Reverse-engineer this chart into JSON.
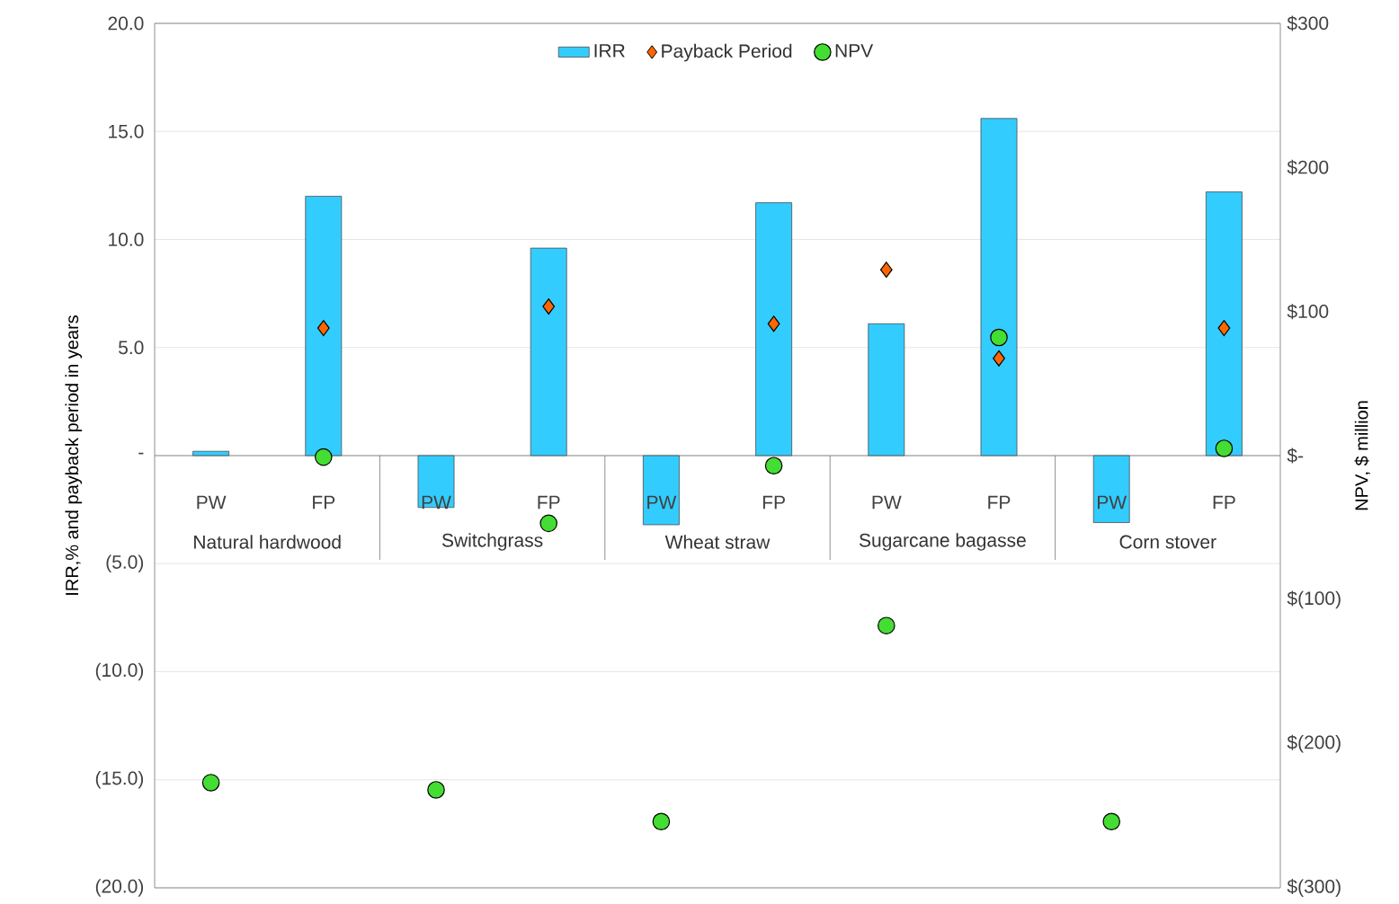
{
  "chart_data": {
    "type": "bar",
    "categories": [
      "PW",
      "FP",
      "PW",
      "FP",
      "PW",
      "FP",
      "PW",
      "FP",
      "PW",
      "FP"
    ],
    "series": [
      {
        "name": "IRR",
        "type": "bar",
        "color": "#33ccff",
        "values": [
          0.2,
          12.0,
          -2.4,
          9.6,
          -3.2,
          11.7,
          6.1,
          15.6,
          -3.1,
          12.2
        ]
      },
      {
        "name": "Payback Period",
        "type": "scatter",
        "marker": "diamond",
        "color": "#ff6600",
        "values": [
          null,
          5.9,
          null,
          6.9,
          null,
          6.1,
          8.6,
          4.5,
          null,
          5.9
        ]
      },
      {
        "name": "NPV",
        "type": "scatter",
        "marker": "circle",
        "axis": "y2",
        "color": "#44dd33",
        "values": [
          -227,
          -1,
          -232,
          -47,
          -254,
          -7,
          -118,
          82,
          -254,
          5
        ]
      }
    ],
    "annotations": [
      "Natural hardwood",
      "Switchgrass",
      "Wheat straw",
      "Sugarcane bagasse",
      "Corn stover"
    ],
    "ylabel": "IRR,% and payback period in years",
    "y2label": "NPV, $ million",
    "ylim": [
      -20,
      20
    ],
    "yticks": [
      {
        "value": -20,
        "label": "(20.0)"
      },
      {
        "value": -15,
        "label": "(15.0)"
      },
      {
        "value": -10,
        "label": "(10.0)"
      },
      {
        "value": -5,
        "label": "(5.0)"
      },
      {
        "value": 0,
        "label": "-"
      },
      {
        "value": 5,
        "label": "5.0"
      },
      {
        "value": 10,
        "label": "10.0"
      },
      {
        "value": 15,
        "label": "15.0"
      },
      {
        "value": 20,
        "label": "20.0"
      }
    ],
    "y2lim": [
      -300,
      300
    ],
    "y2ticks": [
      {
        "value": -300,
        "label": "$(300)"
      },
      {
        "value": -200,
        "label": "$(200)"
      },
      {
        "value": -100,
        "label": "$(100)"
      },
      {
        "value": 0,
        "label": "$-"
      },
      {
        "value": 100,
        "label": "$100"
      },
      {
        "value": 200,
        "label": "$200"
      },
      {
        "value": 300,
        "label": "$300"
      }
    ],
    "grid": "y",
    "legend": "top"
  }
}
